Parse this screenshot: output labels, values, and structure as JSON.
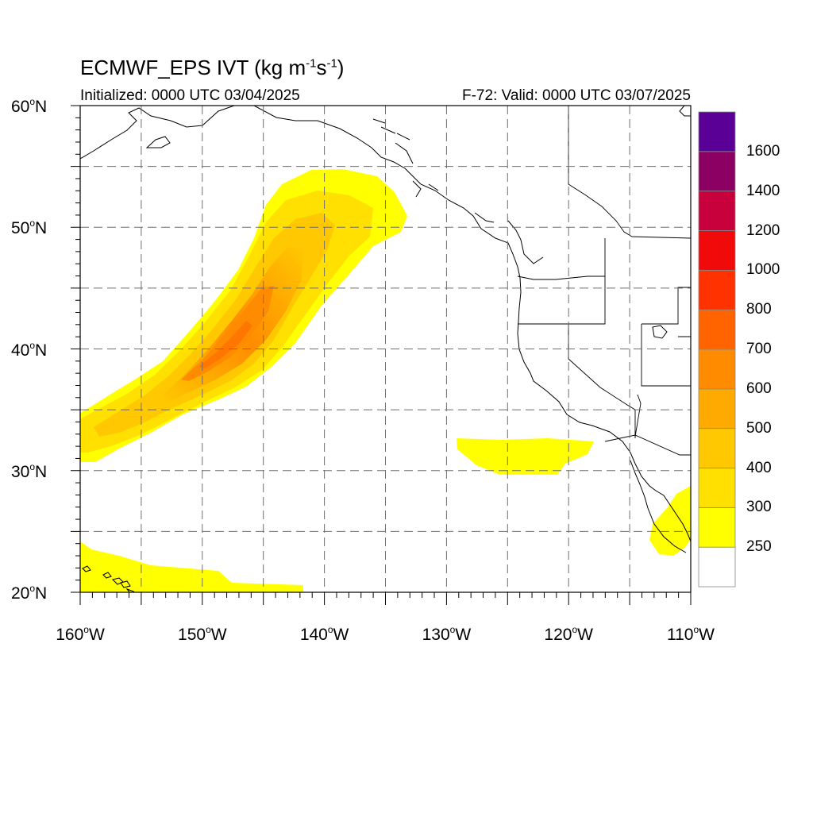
{
  "title": {
    "prefix": "ECMWF_EPS IVT (kg m",
    "exp1": "-1",
    "mid": "s",
    "exp2": "-1",
    "suffix": ")"
  },
  "init_text": "Initialized: 0000 UTC 03/04/2025",
  "valid_text": "F-72: Valid: 0000 UTC 03/07/2025",
  "map": {
    "lon_range": [
      -160,
      -110
    ],
    "lat_range": [
      20,
      60
    ],
    "lat_labels": [
      {
        "lat": 60,
        "text": "60",
        "hemi": "N"
      },
      {
        "lat": 50,
        "text": "50",
        "hemi": "N"
      },
      {
        "lat": 40,
        "text": "40",
        "hemi": "N"
      },
      {
        "lat": 30,
        "text": "30",
        "hemi": "N"
      },
      {
        "lat": 20,
        "text": "20",
        "hemi": "N"
      }
    ],
    "lon_labels": [
      {
        "lon": -160,
        "text": "160",
        "hemi": "W"
      },
      {
        "lon": -150,
        "text": "150",
        "hemi": "W"
      },
      {
        "lon": -140,
        "text": "140",
        "hemi": "W"
      },
      {
        "lon": -130,
        "text": "130",
        "hemi": "W"
      },
      {
        "lon": -120,
        "text": "120",
        "hemi": "W"
      },
      {
        "lon": -110,
        "text": "110",
        "hemi": "W"
      }
    ],
    "grid_lats": [
      25,
      30,
      35,
      40,
      45,
      50,
      55
    ],
    "grid_lons": [
      -155,
      -150,
      -145,
      -140,
      -135,
      -130,
      -125,
      -120,
      -115
    ]
  },
  "colorbar": {
    "labels": [
      "250",
      "300",
      "400",
      "500",
      "600",
      "700",
      "800",
      "1000",
      "1200",
      "1400",
      "1600"
    ],
    "colors": [
      "#ffffff",
      "#ffff00",
      "#ffe000",
      "#ffc800",
      "#ffaa00",
      "#ff8c00",
      "#ff6400",
      "#ff3200",
      "#f00a0a",
      "#c8003c",
      "#8c0064",
      "#5a0096"
    ]
  },
  "colors": {
    "coast": "#000000",
    "grid": "#6e6e6e"
  }
}
